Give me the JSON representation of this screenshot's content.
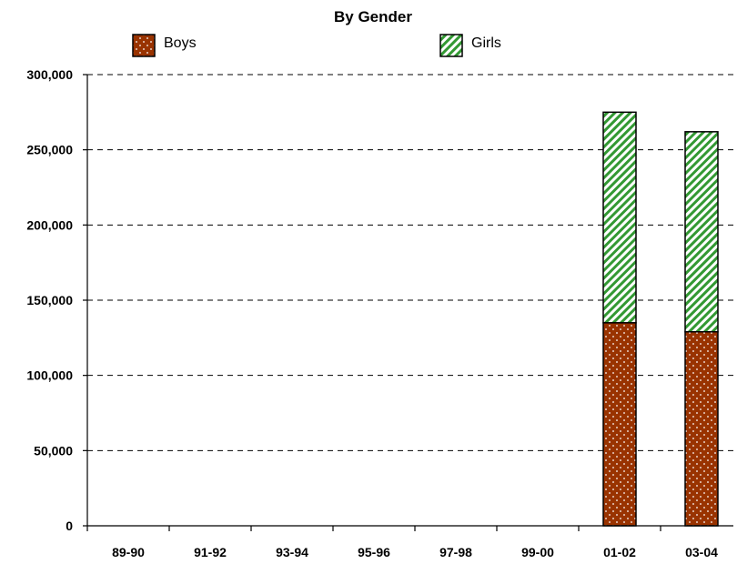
{
  "chart_data": {
    "type": "bar",
    "stacked": true,
    "title": "By Gender",
    "xlabel": "",
    "ylabel": "",
    "categories": [
      "89-90",
      "91-92",
      "93-94",
      "95-96",
      "97-98",
      "99-00",
      "01-02",
      "03-04"
    ],
    "series": [
      {
        "name": "Boys",
        "values": [
          null,
          null,
          null,
          null,
          null,
          null,
          135000,
          129000
        ],
        "color": "#993300",
        "pattern": "dots"
      },
      {
        "name": "Girls",
        "values": [
          null,
          null,
          null,
          null,
          null,
          null,
          140000,
          133000
        ],
        "color": "#339933",
        "pattern": "diagonal-stripes"
      }
    ],
    "ylim": [
      0,
      300000
    ],
    "yticks": [
      0,
      50000,
      100000,
      150000,
      200000,
      250000,
      300000
    ],
    "ytick_labels": [
      "0",
      "50,000",
      "100,000",
      "150,000",
      "200,000",
      "250,000",
      "300,000"
    ],
    "grid": "horizontal dashed",
    "legend": "top"
  }
}
